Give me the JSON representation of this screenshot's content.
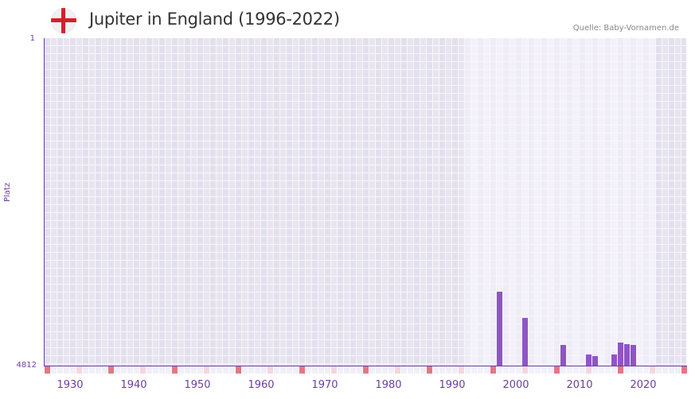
{
  "header": {
    "title": "Jupiter in England (1996-2022)",
    "source": "Quelle: Baby-Vornamen.de",
    "flag_icon": "england-flag-icon"
  },
  "y_axis": {
    "label": "Platz",
    "top_tick": "1",
    "bottom_tick": "4812"
  },
  "x_axis": {
    "ticks": [
      "1930",
      "1940",
      "1950",
      "1960",
      "1970",
      "1980",
      "1990",
      "2000",
      "2010",
      "2020"
    ]
  },
  "colors": {
    "bar": "#8e55c7",
    "axis": "#6b3fa0",
    "bg_outside": "#e3e0ee",
    "bg_outside_alt": "#e8e5f0",
    "bg_range": "#efecf8",
    "bg_range_alt": "#f3f1fb",
    "marker_decade": "#e57682",
    "marker_half": "#f6d6de",
    "marker_plain": "#efecf8"
  },
  "chart_data": {
    "type": "bar",
    "title": "Jupiter in England (1996-2022)",
    "xlabel": "",
    "ylabel": "Platz",
    "y_inverted": true,
    "ylim": [
      4812,
      1
    ],
    "x_range": [
      1928,
      2028
    ],
    "highlight_range": [
      1994,
      2023
    ],
    "categories": [
      "1999",
      "2003",
      "2009",
      "2013",
      "2014",
      "2017",
      "2018",
      "2019",
      "2020"
    ],
    "values": [
      3726,
      4111,
      4508,
      4648,
      4672,
      4648,
      4473,
      4497,
      4508
    ],
    "tick_labels_x": [
      "1930",
      "1940",
      "1950",
      "1960",
      "1970",
      "1980",
      "1990",
      "2000",
      "2010",
      "2020"
    ],
    "tick_labels_y": [
      "1",
      "4812"
    ],
    "grid": true,
    "legend": null,
    "source": "Quelle: Baby-Vornamen.de"
  }
}
